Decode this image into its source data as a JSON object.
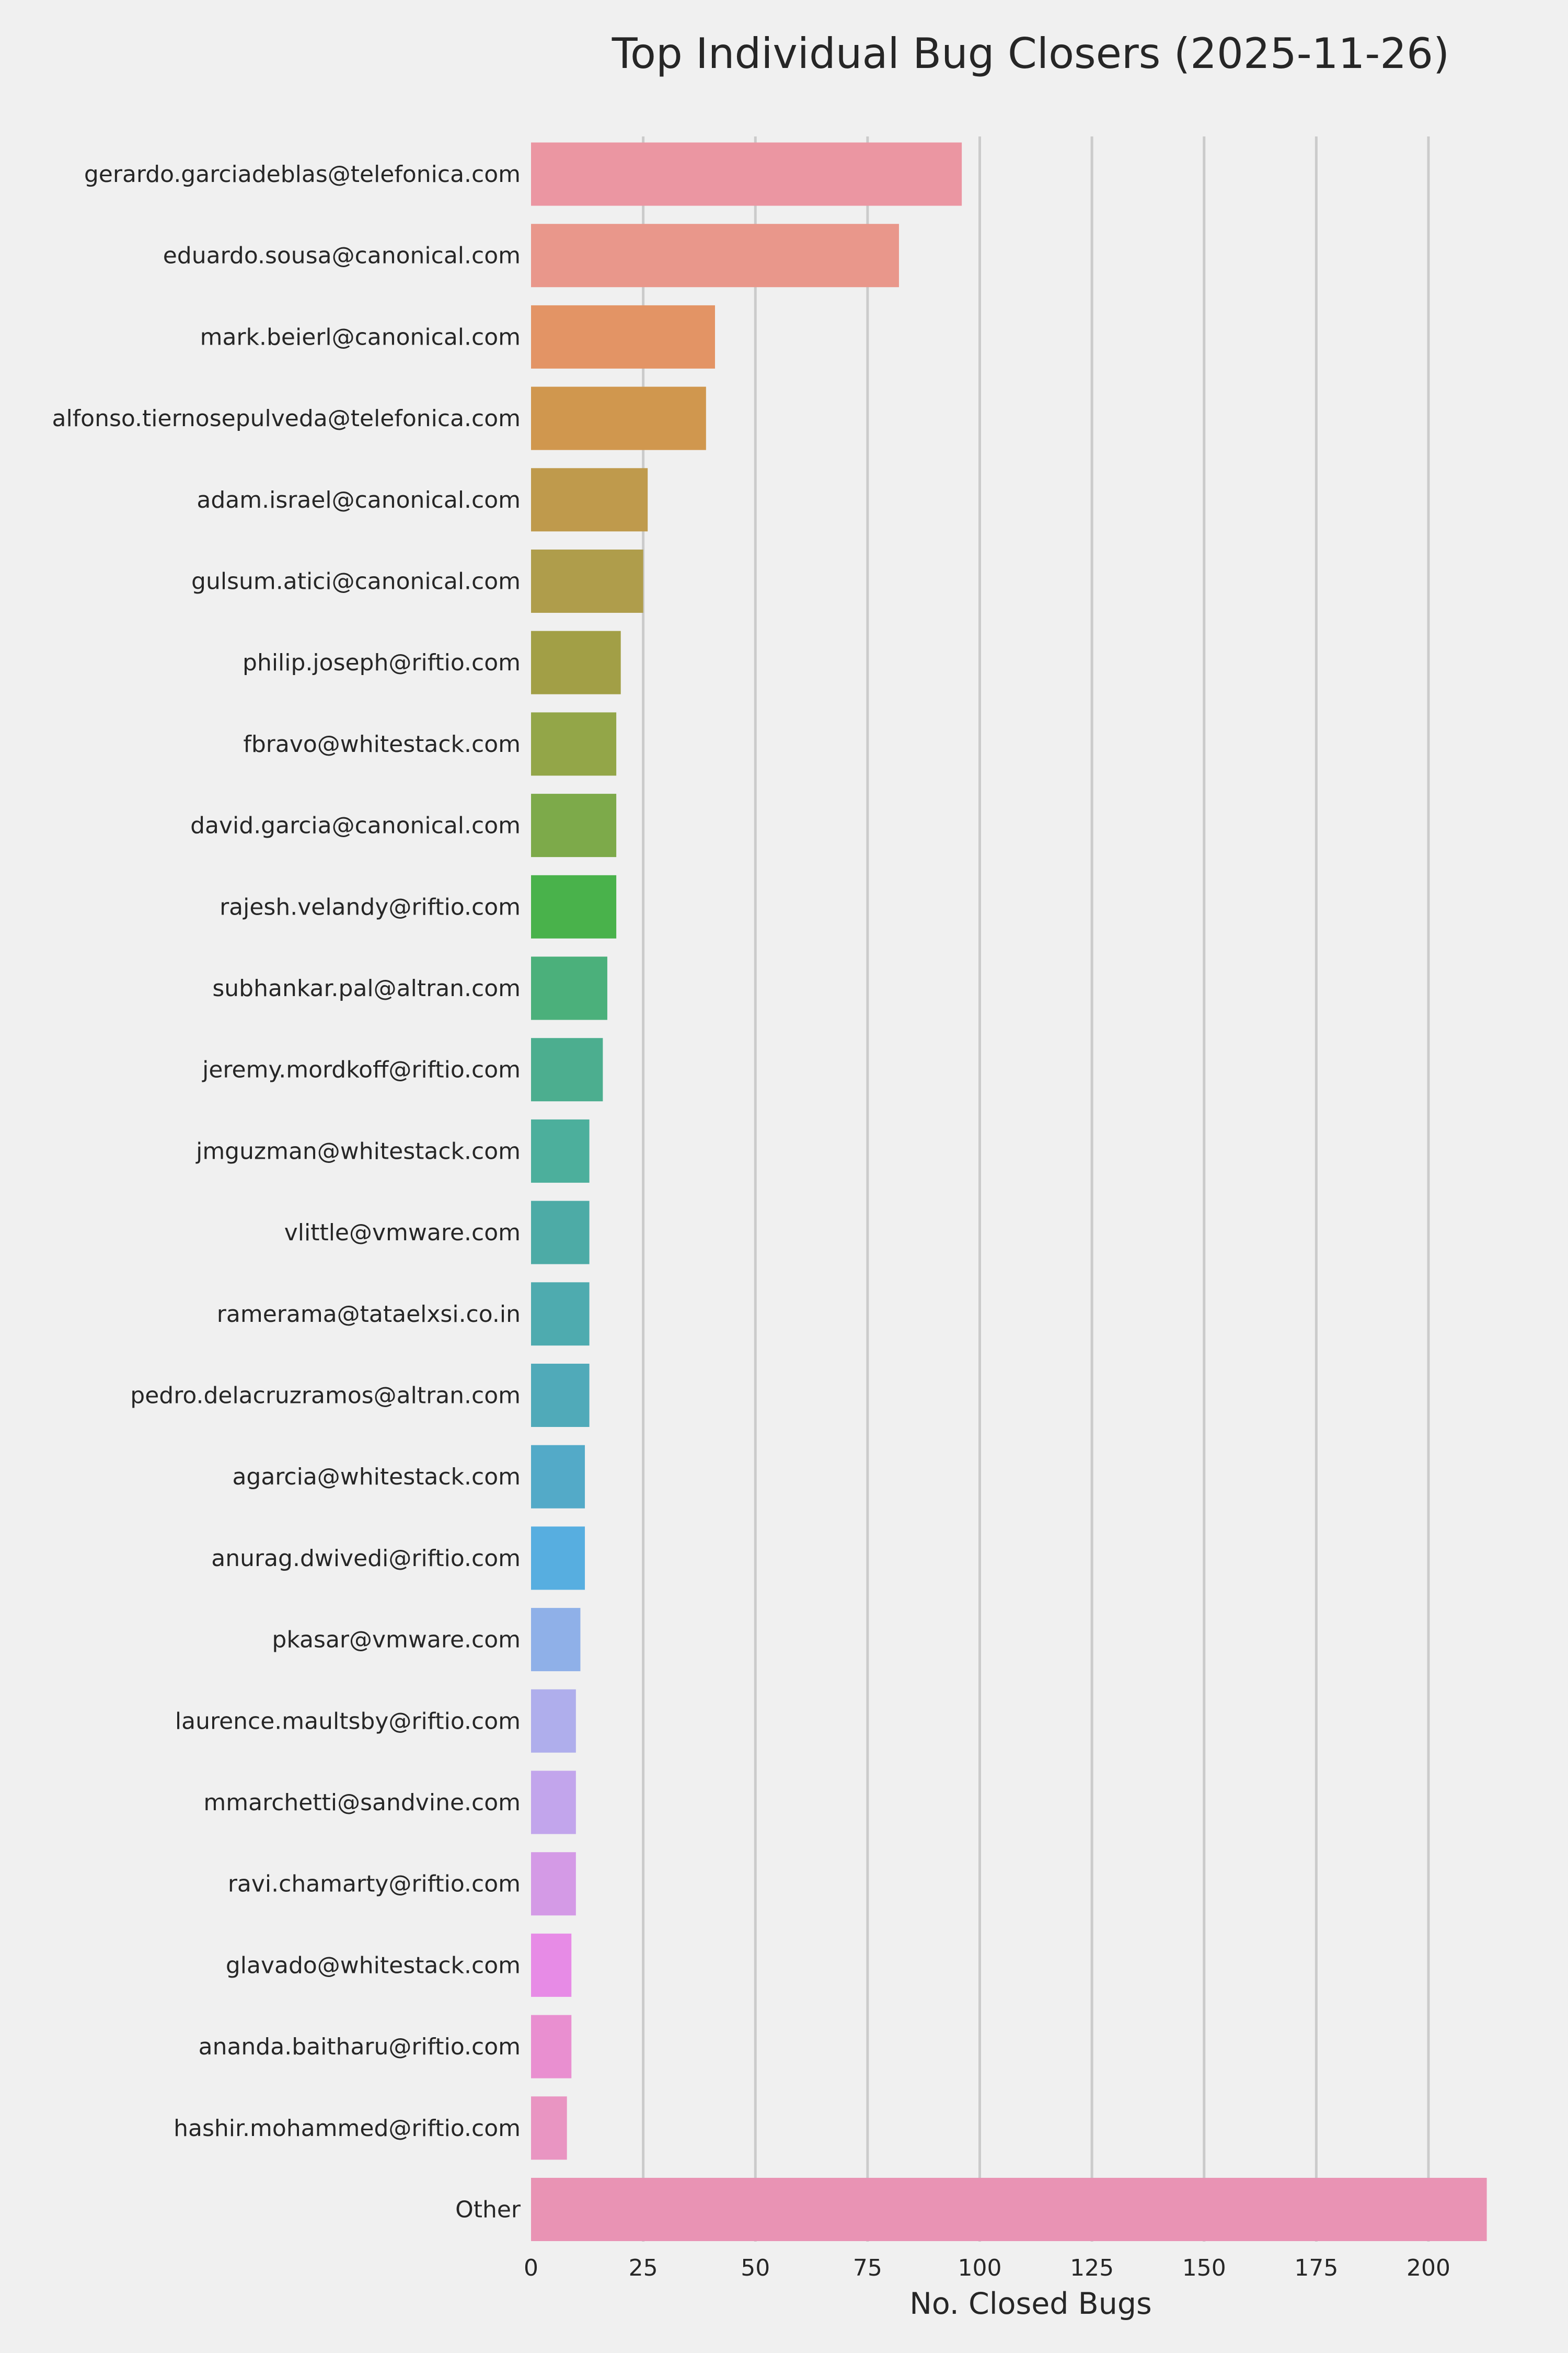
{
  "chart_data": {
    "type": "bar",
    "orientation": "horizontal",
    "title": "Top Individual Bug Closers (2025-11-26)",
    "xlabel": "No. Closed Bugs",
    "ylabel": "",
    "xlim": [
      0,
      213
    ],
    "xticks": [
      "0",
      "25",
      "50",
      "75",
      "100",
      "125",
      "150",
      "175",
      "200"
    ],
    "grid": "vertical lines on",
    "categories": [
      "gerardo.garciadeblas@telefonica.com",
      "eduardo.sousa@canonical.com",
      "mark.beierl@canonical.com",
      "alfonso.tiernosepulveda@telefonica.com",
      "adam.israel@canonical.com",
      "gulsum.atici@canonical.com",
      "philip.joseph@riftio.com",
      "fbravo@whitestack.com",
      "david.garcia@canonical.com",
      "rajesh.velandy@riftio.com",
      "subhankar.pal@altran.com",
      "jeremy.mordkoff@riftio.com",
      "jmguzman@whitestack.com",
      "vlittle@vmware.com",
      "ramerama@tataelxsi.co.in",
      "pedro.delacruzramos@altran.com",
      "agarcia@whitestack.com",
      "anurag.dwivedi@riftio.com",
      "pkasar@vmware.com",
      "laurence.maultsby@riftio.com",
      "mmarchetti@sandvine.com",
      "ravi.chamarty@riftio.com",
      "glavado@whitestack.com",
      "ananda.baitharu@riftio.com",
      "hashir.mohammed@riftio.com",
      "Other"
    ],
    "values": [
      96,
      82,
      41,
      39,
      26,
      25,
      20,
      19,
      19,
      19,
      17,
      16,
      13,
      13,
      13,
      13,
      12,
      12,
      11,
      10,
      10,
      10,
      9,
      9,
      8,
      213
    ],
    "colors": [
      "#eb96a2",
      "#e9978b",
      "#e39465",
      "#d0974e",
      "#bf9a4c",
      "#af9d4b",
      "#a29f46",
      "#93a648",
      "#7daa4a",
      "#49b24b",
      "#4bb07b",
      "#4cae8f",
      "#4caf9c",
      "#4daba6",
      "#4eabaf",
      "#50aab9",
      "#53aac8",
      "#57aee0",
      "#8fb0e8",
      "#afaeec",
      "#c2a5ec",
      "#d49ae6",
      "#e78be6",
      "#e98fd0",
      "#e995c2",
      "#e993b4"
    ],
    "background": "#f0f0f0"
  }
}
